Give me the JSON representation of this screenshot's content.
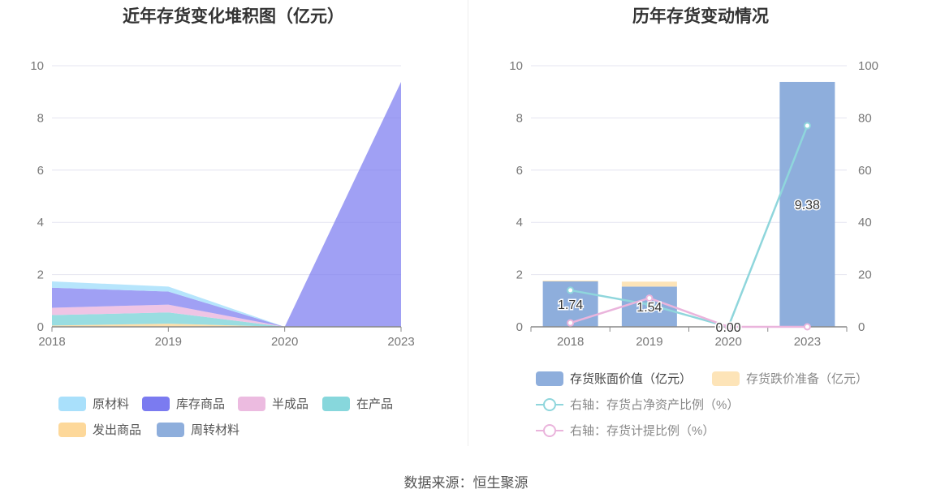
{
  "source_label": "数据来源：恒生聚源",
  "chart_data": [
    {
      "type": "area",
      "title": "近年存货变化堆积图（亿元）",
      "x": [
        "2018",
        "2019",
        "2020",
        "2023"
      ],
      "ylim": [
        0,
        10
      ],
      "yticks": [
        0,
        2,
        4,
        6,
        8,
        10
      ],
      "stacked": true,
      "grid": true,
      "legend_position": "bottom",
      "series": [
        {
          "name": "发出商品",
          "color": "#fdd89a",
          "values": [
            0.05,
            0.12,
            0,
            0
          ]
        },
        {
          "name": "在产品",
          "color": "#87d7dc",
          "values": [
            0.4,
            0.43,
            0,
            0
          ]
        },
        {
          "name": "半成品",
          "color": "#ecbbe0",
          "values": [
            0.28,
            0.3,
            0,
            0
          ]
        },
        {
          "name": "库存商品",
          "color": "#7b7bf0",
          "values": [
            0.77,
            0.5,
            0,
            9.38
          ]
        },
        {
          "name": "原材料",
          "color": "#a9e0fb",
          "values": [
            0.24,
            0.19,
            0,
            0
          ]
        },
        {
          "name": "周转材料",
          "color": "#8eaedc",
          "values": [
            0,
            0,
            0,
            0
          ]
        }
      ],
      "legend_order": [
        "原材料",
        "库存商品",
        "半成品",
        "在产品",
        "发出商品",
        "周转材料"
      ]
    },
    {
      "type": "bar",
      "title": "历年存货变动情况",
      "categories": [
        "2018",
        "2019",
        "2020",
        "2023"
      ],
      "ylim": [
        0,
        10
      ],
      "yticks": [
        0,
        2,
        4,
        6,
        8,
        10
      ],
      "y2lim": [
        0,
        100
      ],
      "y2ticks": [
        0,
        20,
        40,
        60,
        80,
        100
      ],
      "grid": true,
      "legend_position": "bottom",
      "series": [
        {
          "name": "存货账面价值（亿元）",
          "color": "#8eaedc",
          "type": "bar",
          "stack": "a",
          "values": [
            1.74,
            1.54,
            0.0,
            9.38
          ],
          "labels": [
            "1.74",
            "1.54",
            "0.00",
            "9.38"
          ]
        },
        {
          "name": "存货跌价准备（亿元）",
          "color": "#fde4b8",
          "type": "bar",
          "stack": "a",
          "values": [
            0.03,
            0.19,
            0,
            0
          ]
        },
        {
          "name": "右轴：存货占净资产比例（%）",
          "color": "#8fd6dc",
          "type": "line",
          "axis": "right",
          "values": [
            14.0,
            8.5,
            0.0,
            77.0
          ]
        },
        {
          "name": "右轴：存货计提比例（%）",
          "color": "#eab4dc",
          "type": "line",
          "axis": "right",
          "values": [
            1.5,
            11.0,
            0.0,
            0.0
          ]
        }
      ]
    }
  ]
}
